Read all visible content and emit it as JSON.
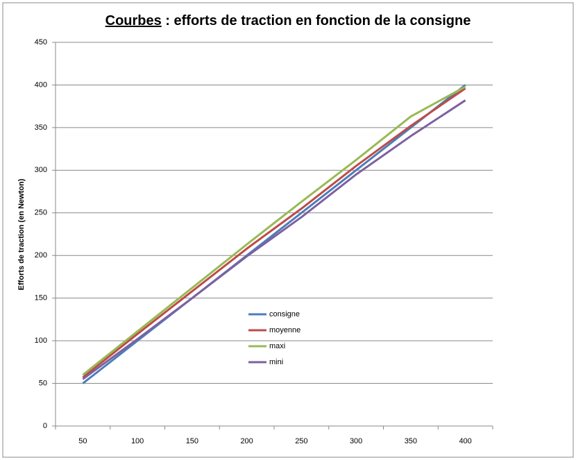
{
  "chart_data": {
    "type": "line",
    "title_parts": [
      "Courbes",
      " :  efforts de traction en fonction de la consigne"
    ],
    "y_label": "Efforts de traction (en Newton)",
    "categories": [
      50,
      100,
      150,
      200,
      250,
      300,
      350,
      400
    ],
    "series": [
      {
        "name": "consigne",
        "color": "#4a7ebb",
        "values": [
          50,
          100,
          150,
          200,
          250,
          300,
          350,
          400
        ]
      },
      {
        "name": "moyenne",
        "color": "#be4b48",
        "values": [
          57,
          108,
          158,
          208,
          255,
          305,
          352,
          396
        ]
      },
      {
        "name": "maxi",
        "color": "#98b954",
        "values": [
          60,
          111,
          162,
          213,
          263,
          312,
          363,
          398
        ]
      },
      {
        "name": "mini",
        "color": "#7d60a0",
        "values": [
          55,
          102,
          150,
          199,
          245,
          295,
          340,
          382
        ]
      }
    ],
    "ylim": [
      0,
      450
    ],
    "yticks": [
      0,
      50,
      100,
      150,
      200,
      250,
      300,
      350,
      400,
      450
    ],
    "grid": true
  }
}
